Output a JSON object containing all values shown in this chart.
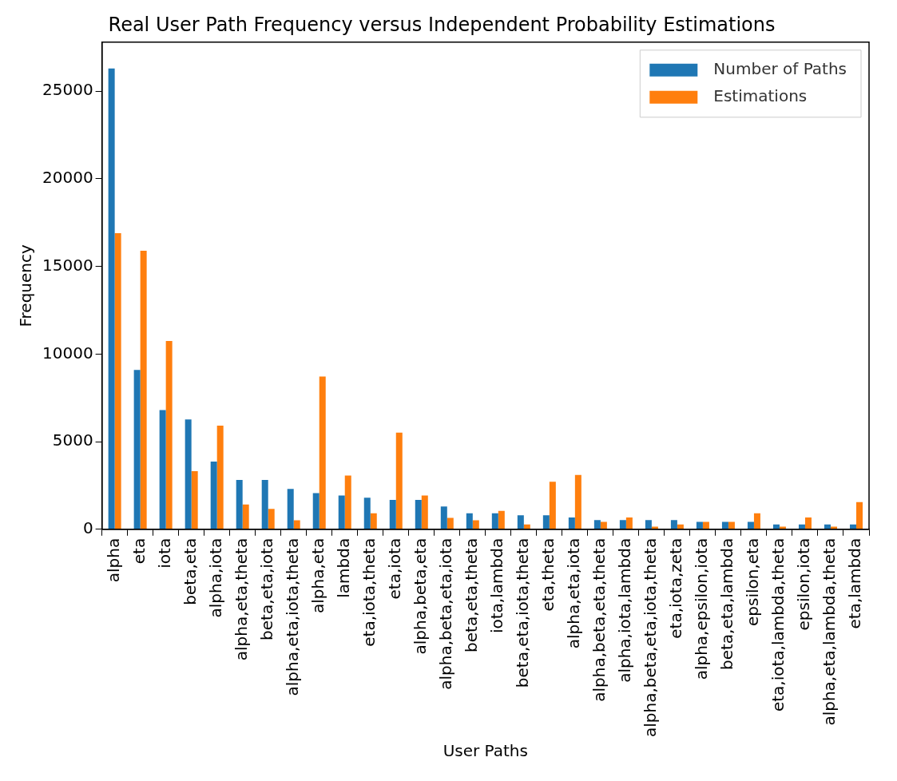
{
  "chart_data": {
    "type": "bar",
    "title": "Real User Path Frequency versus Independent Probability Estimations",
    "xlabel": "User Paths",
    "ylabel": "Frequency",
    "categories": [
      "alpha",
      "eta",
      "iota",
      "beta,eta",
      "alpha,iota",
      "alpha,eta,theta",
      "beta,eta,iota",
      "alpha,eta,iota,theta",
      "alpha,eta",
      "lambda",
      "eta,iota,theta",
      "eta,iota",
      "alpha,beta,eta",
      "alpha,beta,eta,iota",
      "beta,eta,theta",
      "iota,lambda",
      "beta,eta,iota,theta",
      "eta,theta",
      "alpha,eta,iota",
      "alpha,beta,eta,theta",
      "alpha,iota,lambda",
      "alpha,beta,eta,iota,theta",
      "eta,iota,zeta",
      "alpha,epsilon,iota",
      "beta,eta,lambda",
      "epsilon,eta",
      "eta,iota,lambda,theta",
      "epsilon,iota",
      "alpha,eta,lambda,theta",
      "eta,lambda"
    ],
    "series": [
      {
        "name": "Number of Paths",
        "color": "#1f77b4",
        "values": [
          26300,
          9100,
          6800,
          6270,
          3860,
          2820,
          2820,
          2310,
          2060,
          1930,
          1800,
          1680,
          1680,
          1300,
          920,
          920,
          800,
          800,
          670,
          530,
          530,
          530,
          530,
          420,
          420,
          420,
          280,
          280,
          280,
          280
        ]
      },
      {
        "name": "Estimations",
        "color": "#ff7f0e",
        "values": [
          16900,
          15900,
          10750,
          3320,
          5920,
          1420,
          1170,
          520,
          8720,
          3070,
          920,
          5520,
          1930,
          650,
          520,
          1050,
          280,
          2720,
          3100,
          420,
          670,
          150,
          280,
          420,
          420,
          920,
          150,
          670,
          150,
          1550
        ]
      }
    ],
    "ylim": [
      0,
      27800
    ],
    "yticks": [
      0,
      5000,
      10000,
      15000,
      20000,
      25000
    ],
    "grid": false,
    "legend": "top right"
  }
}
